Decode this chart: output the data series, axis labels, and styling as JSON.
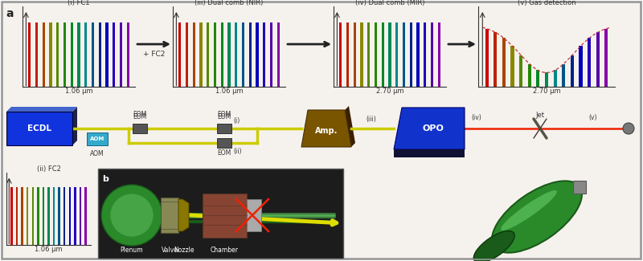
{
  "fig_width": 8.0,
  "fig_height": 3.25,
  "dpi": 100,
  "bg_color": "#ffffff",
  "inner_bg": "#f5f2ee",
  "panel_a_label": "a",
  "panel_b_label": "b",
  "comb_colors_nir": [
    "#cc0000",
    "#bb2200",
    "#aa4400",
    "#888800",
    "#558800",
    "#228800",
    "#008822",
    "#008855",
    "#008888",
    "#005588",
    "#002288",
    "#0000bb",
    "#2200bb",
    "#5500aa",
    "#8800aa"
  ],
  "comb_colors_mir": [
    "#cc0000",
    "#bb2200",
    "#aa4400",
    "#888800",
    "#558800",
    "#228800",
    "#008822",
    "#008855",
    "#008888",
    "#005588",
    "#002288",
    "#0000bb",
    "#2200bb",
    "#5500aa",
    "#8800aa"
  ],
  "plot_titles": [
    "(i) FC1",
    "(iii) Dual comb (NIR)",
    "(iv) Dual comb (MIR)",
    "(v) Gas detection"
  ],
  "plot_xlabels": [
    "1.06 μm",
    "1.06 μm",
    "2.70 μm",
    "2.70 μm"
  ],
  "fc2_label": "+ FC2",
  "fc2_title": "(ii) FC2",
  "fc2_xlabel": "1.06 μm",
  "arrow_color": "#222222",
  "ecdl_color_top": "#3355ff",
  "ecdl_color_bot": "#0000aa",
  "ecdl_label": "ECDL",
  "aom_color": "#33aacc",
  "aom_label": "AOM",
  "amp_color": "#7a5500",
  "amp_label": "Amp.",
  "opo_color_top": "#2244ff",
  "opo_color_bot": "#000088",
  "opo_label": "OPO",
  "jet_label": "Jet",
  "fiber_color": "#cccc00",
  "beam_color_red": "#ee2200",
  "beam_color_yellow": "#dddd00",
  "dashed_envelope_color": "#cc3333",
  "plenum_label": "Plenum",
  "valve_label": "Valve",
  "nozzle_label": "Nozzle",
  "chamber_label": "Chamber",
  "border_color": "#999999",
  "text_color": "#333333"
}
